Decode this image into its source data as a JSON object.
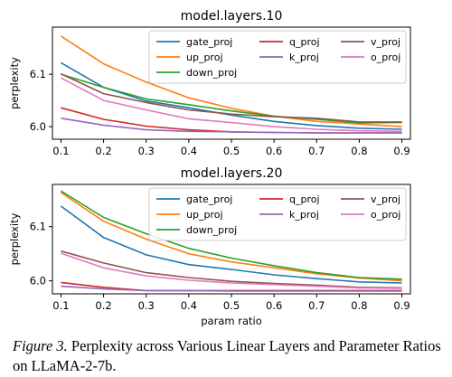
{
  "chart_data": [
    {
      "type": "line",
      "title": "model.layers.10",
      "xlabel": "",
      "ylabel": "perplexity",
      "x": [
        0.1,
        0.2,
        0.3,
        0.4,
        0.5,
        0.6,
        0.7,
        0.8,
        0.9
      ],
      "x_ticks": [
        "0.1",
        "0.2",
        "0.3",
        "0.4",
        "0.5",
        "0.6",
        "0.7",
        "0.8",
        "0.9"
      ],
      "y_ticks": [
        "6.0",
        "6.1"
      ],
      "y_tick_values": [
        6.0,
        6.1
      ],
      "xlim": [
        0.08,
        0.92
      ],
      "ylim": [
        5.976,
        6.19
      ],
      "grid": false,
      "legend": "top-right, 3 columns",
      "series": [
        {
          "name": "gate_proj",
          "color": "#1f77b4",
          "values": [
            6.122,
            6.075,
            6.049,
            6.036,
            6.022,
            6.01,
            6.002,
            5.997,
            5.995
          ]
        },
        {
          "name": "up_proj",
          "color": "#ff7f0e",
          "values": [
            6.173,
            6.12,
            6.085,
            6.055,
            6.035,
            6.02,
            6.01,
            6.005,
            6.0
          ]
        },
        {
          "name": "down_proj",
          "color": "#2ca02c",
          "values": [
            6.1,
            6.075,
            6.053,
            6.042,
            6.03,
            6.02,
            6.014,
            6.007,
            6.008
          ]
        },
        {
          "name": "q_proj",
          "color": "#d62728",
          "values": [
            6.036,
            6.014,
            6.001,
            5.994,
            5.99,
            5.989,
            5.988,
            5.988,
            5.988
          ]
        },
        {
          "name": "k_proj",
          "color": "#9467bd",
          "values": [
            6.016,
            6.003,
            5.994,
            5.991,
            5.99,
            5.989,
            5.988,
            5.988,
            5.988
          ]
        },
        {
          "name": "v_proj",
          "color": "#8c564b",
          "values": [
            6.101,
            6.063,
            6.046,
            6.032,
            6.024,
            6.019,
            6.016,
            6.009,
            6.009
          ]
        },
        {
          "name": "o_proj",
          "color": "#e377c2",
          "values": [
            6.093,
            6.05,
            6.032,
            6.015,
            6.008,
            6.0,
            5.995,
            5.992,
            5.991
          ]
        }
      ]
    },
    {
      "type": "line",
      "title": "model.layers.20",
      "xlabel": "param ratio",
      "ylabel": "perplexity",
      "x": [
        0.1,
        0.2,
        0.3,
        0.4,
        0.5,
        0.6,
        0.7,
        0.8,
        0.9
      ],
      "x_ticks": [
        "0.1",
        "0.2",
        "0.3",
        "0.4",
        "0.5",
        "0.6",
        "0.7",
        "0.8",
        "0.9"
      ],
      "y_ticks": [
        "6.0",
        "6.1"
      ],
      "y_tick_values": [
        6.0,
        6.1
      ],
      "xlim": [
        0.08,
        0.92
      ],
      "ylim": [
        5.976,
        6.178
      ],
      "grid": false,
      "legend": "top-right, 3 columns",
      "series": [
        {
          "name": "gate_proj",
          "color": "#1f77b4",
          "values": [
            6.138,
            6.08,
            6.048,
            6.03,
            6.021,
            6.011,
            6.004,
            5.998,
            5.996
          ]
        },
        {
          "name": "up_proj",
          "color": "#ff7f0e",
          "values": [
            6.163,
            6.11,
            6.077,
            6.05,
            6.035,
            6.024,
            6.013,
            6.005,
            6.0
          ]
        },
        {
          "name": "down_proj",
          "color": "#2ca02c",
          "values": [
            6.166,
            6.117,
            6.087,
            6.06,
            6.042,
            6.028,
            6.015,
            6.006,
            6.003
          ]
        },
        {
          "name": "q_proj",
          "color": "#d62728",
          "values": [
            5.997,
            5.988,
            5.982,
            5.982,
            5.982,
            5.982,
            5.982,
            5.982,
            5.982
          ]
        },
        {
          "name": "k_proj",
          "color": "#9467bd",
          "values": [
            5.99,
            5.985,
            5.982,
            5.982,
            5.981,
            5.981,
            5.981,
            5.981,
            5.981
          ]
        },
        {
          "name": "v_proj",
          "color": "#8c564b",
          "values": [
            6.055,
            6.033,
            6.015,
            6.006,
            5.999,
            5.995,
            5.992,
            5.988,
            5.987
          ]
        },
        {
          "name": "o_proj",
          "color": "#e377c2",
          "values": [
            6.051,
            6.024,
            6.009,
            6.001,
            5.996,
            5.993,
            5.99,
            5.987,
            5.986
          ]
        }
      ]
    }
  ],
  "legend_columns": [
    [
      "gate_proj",
      "up_proj",
      "down_proj"
    ],
    [
      "q_proj",
      "k_proj"
    ],
    [
      "v_proj",
      "o_proj"
    ]
  ],
  "caption": {
    "label": "Figure 3.",
    "text": "Perplexity across Various Linear Layers and Parameter Ratios on LLaMA-2-7b."
  }
}
